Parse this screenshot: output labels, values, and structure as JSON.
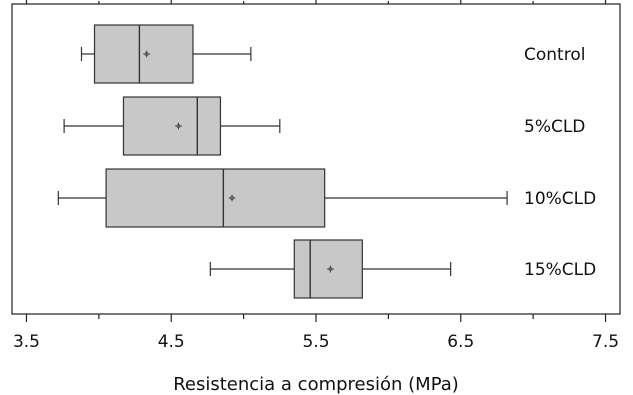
{
  "chart_data": {
    "type": "boxplot",
    "orientation": "horizontal",
    "title": "",
    "xlabel": "Resistencia a compresión (MPa)",
    "ylabel": "",
    "xlim": [
      3.4,
      7.6
    ],
    "xticks": [
      "3.5",
      "4.5",
      "5.5",
      "6.5",
      "7.5"
    ],
    "xtick_values": [
      3.5,
      4.5,
      5.5,
      6.5,
      7.5
    ],
    "grid": false,
    "box_fill": "#c8c8c8",
    "line_color": "#333333",
    "categories": [
      "Control",
      "5%CLD",
      "10%CLD",
      "15%CLD"
    ],
    "boxes": [
      {
        "name": "Control",
        "min": 3.88,
        "q1": 3.97,
        "median": 4.28,
        "q3": 4.65,
        "max": 5.05,
        "mean": 4.33
      },
      {
        "name": "5%CLD",
        "min": 3.76,
        "q1": 4.17,
        "median": 4.68,
        "q3": 4.84,
        "max": 5.25,
        "mean": 4.55
      },
      {
        "name": "10%CLD",
        "min": 3.72,
        "q1": 4.05,
        "median": 4.86,
        "q3": 5.56,
        "max": 6.82,
        "mean": 4.92
      },
      {
        "name": "15%CLD",
        "min": 4.77,
        "q1": 5.35,
        "median": 5.46,
        "q3": 5.82,
        "max": 6.43,
        "mean": 5.6
      }
    ]
  }
}
